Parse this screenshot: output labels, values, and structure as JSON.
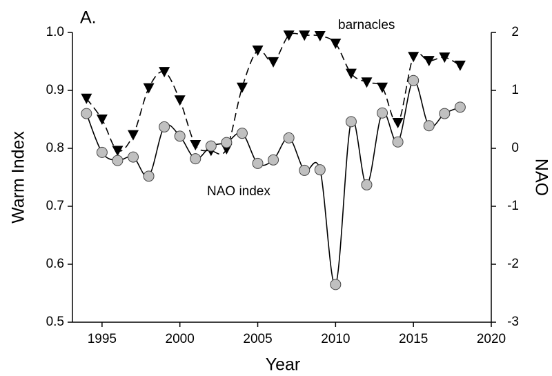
{
  "chart_data": {
    "type": "line",
    "annotations": [
      "A."
    ],
    "xlabel": "Year",
    "ylabel": "Warm Index",
    "y2label": "NAO",
    "x": [
      1994,
      1995,
      1996,
      1997,
      1998,
      1999,
      2000,
      2001,
      2002,
      2003,
      2004,
      2005,
      2006,
      2007,
      2008,
      2009,
      2010,
      2011,
      2012,
      2013,
      2014,
      2015,
      2016,
      2017,
      2018
    ],
    "series": [
      {
        "name": "barnacles",
        "color": "#000000",
        "marker": "triangle-down",
        "linestyle": "dashed",
        "values": [
          0.886,
          0.85,
          0.796,
          0.823,
          0.904,
          0.932,
          0.883,
          0.806,
          0.796,
          0.799,
          0.905,
          0.969,
          0.949,
          0.995,
          0.995,
          0.994,
          0.981,
          0.929,
          0.914,
          0.905,
          0.844,
          0.958,
          0.951,
          0.957,
          0.943
        ]
      },
      {
        "name": "NAO index",
        "color": "#c0c0c0",
        "marker": "circle",
        "linestyle": "solid",
        "axis": "y2",
        "values": [
          0.6,
          -0.07,
          -0.21,
          -0.15,
          -0.48,
          0.37,
          0.21,
          -0.18,
          0.04,
          0.1,
          0.26,
          -0.26,
          -0.2,
          0.18,
          -0.38,
          -0.37,
          -2.35,
          0.46,
          -0.63,
          0.61,
          0.11,
          1.17,
          0.39,
          0.6,
          0.71
        ]
      }
    ],
    "xlim": [
      1993.1,
      2020
    ],
    "xticks": [
      1995,
      2000,
      2005,
      2010,
      2015,
      2020
    ],
    "ylim": [
      0.5,
      1.0
    ],
    "yticks": [
      0.5,
      0.6,
      0.7,
      0.8,
      0.9,
      {
        "value": 1,
        "label": "1.0"
      }
    ],
    "y2lim": [
      -3,
      2
    ],
    "y2ticks": [
      -3,
      -2,
      -1,
      0,
      1,
      2
    ]
  }
}
